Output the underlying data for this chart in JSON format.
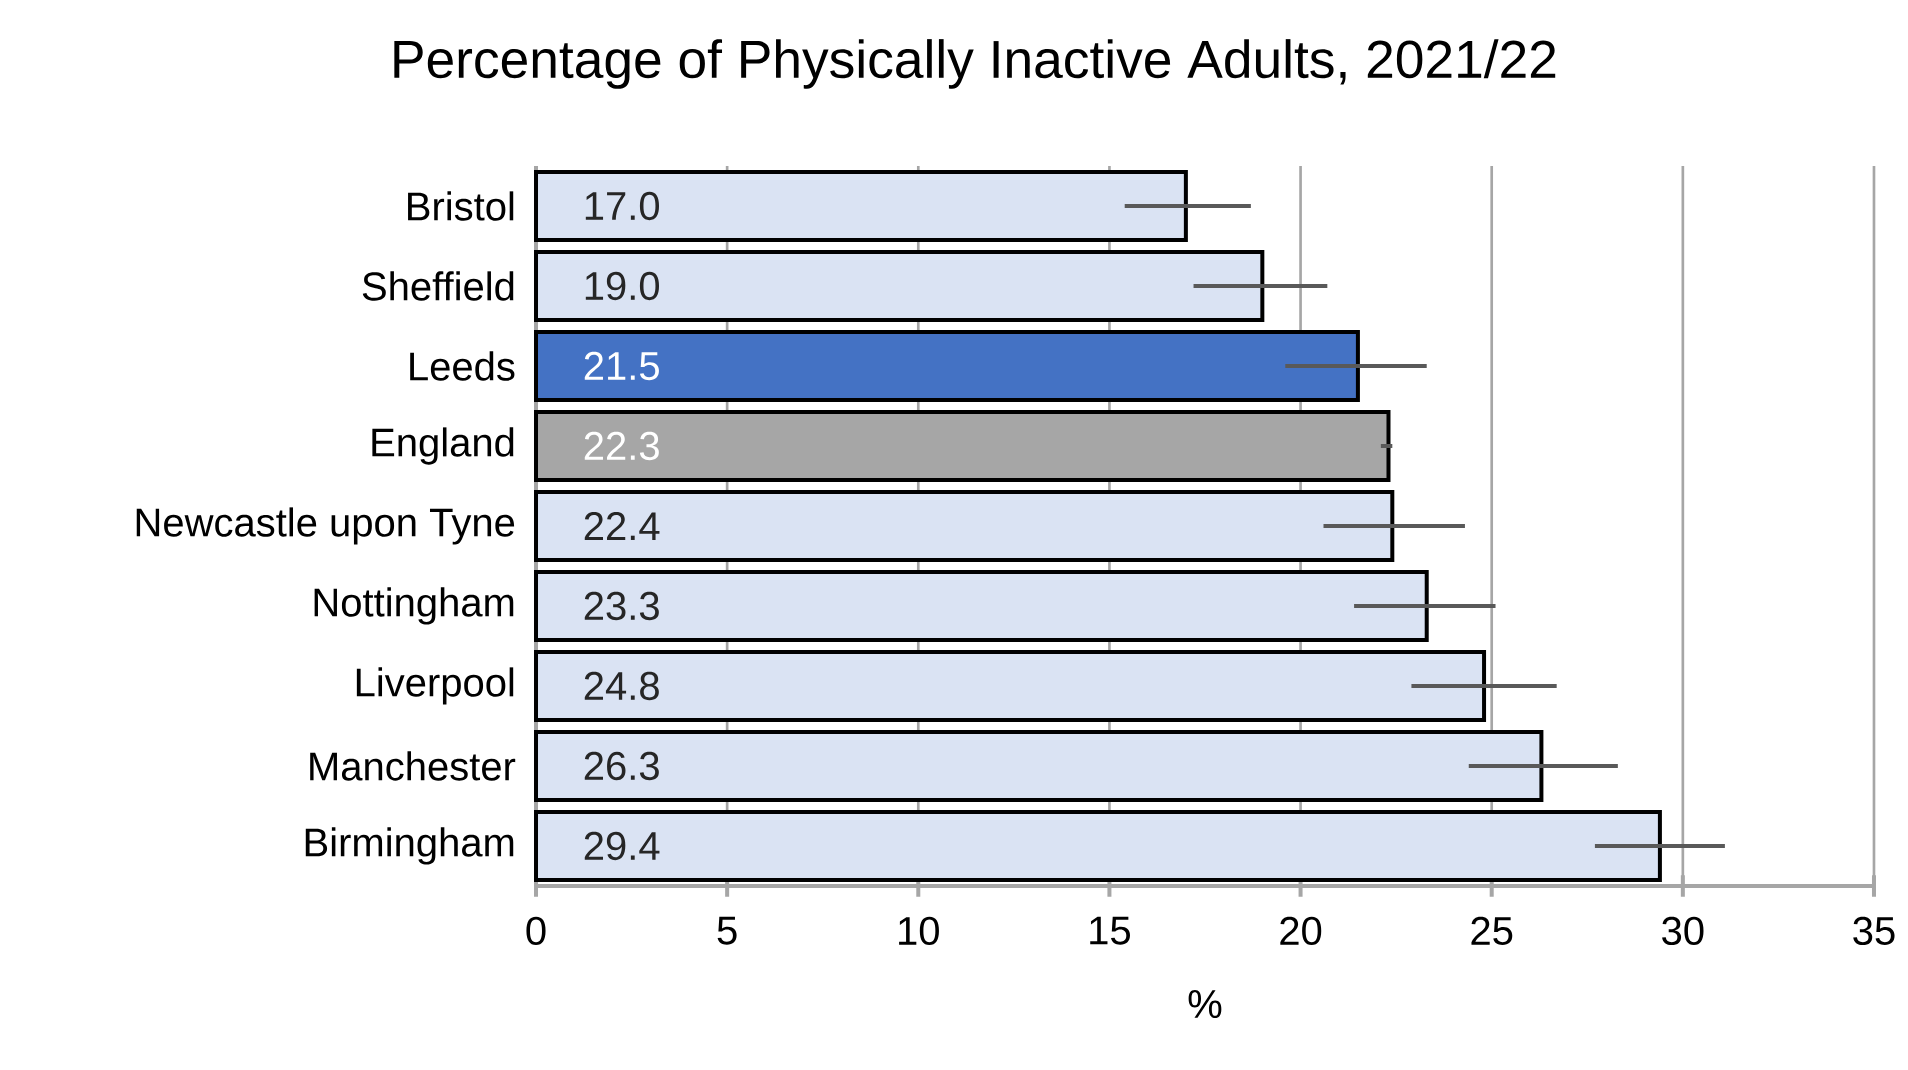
{
  "chart_data": {
    "type": "bar",
    "orientation": "horizontal",
    "title": "Percentage of Physically Inactive Adults, 2021/22",
    "xlabel": "%",
    "categories": [
      "Bristol",
      "Sheffield",
      "Leeds",
      "England",
      "Newcastle upon Tyne",
      "Nottingham",
      "Liverpool",
      "Manchester",
      "Birmingham"
    ],
    "values": [
      17.0,
      19.0,
      21.5,
      22.3,
      22.4,
      23.3,
      24.8,
      26.3,
      29.4
    ],
    "value_labels": [
      "17.0",
      "19.0",
      "21.5",
      "22.3",
      "22.4",
      "23.3",
      "24.8",
      "26.3",
      "29.4"
    ],
    "errors": [
      [
        15.4,
        18.7
      ],
      [
        17.2,
        20.7
      ],
      [
        19.6,
        23.3
      ],
      [
        22.1,
        22.4
      ],
      [
        20.6,
        24.3
      ],
      [
        21.4,
        25.1
      ],
      [
        22.9,
        26.7
      ],
      [
        24.4,
        28.3
      ],
      [
        27.7,
        31.1
      ]
    ],
    "colors": [
      "#dae3f3",
      "#dae3f3",
      "#4472c4",
      "#a6a6a6",
      "#dae3f3",
      "#dae3f3",
      "#dae3f3",
      "#dae3f3",
      "#dae3f3"
    ],
    "xlim": [
      0,
      35
    ],
    "xticks": [
      0,
      5,
      10,
      15,
      20,
      25,
      30,
      35
    ],
    "grid": "x"
  }
}
